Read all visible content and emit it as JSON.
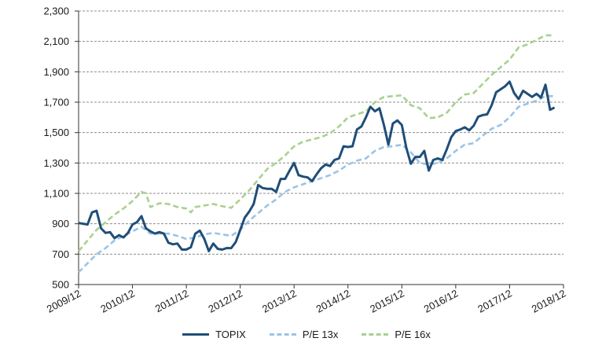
{
  "chart_data": {
    "type": "line",
    "title": "",
    "xlabel": "",
    "ylabel": "",
    "ylim": [
      500,
      2300
    ],
    "yticks": [
      500,
      700,
      900,
      1100,
      1300,
      1500,
      1700,
      1900,
      2100,
      2300
    ],
    "ytick_labels": [
      "500",
      "700",
      "900",
      "1,100",
      "1,300",
      "1,500",
      "1,700",
      "1,900",
      "2,100",
      "2,300"
    ],
    "x_range": [
      0,
      108
    ],
    "xticks": [
      0,
      12,
      24,
      36,
      48,
      60,
      72,
      84,
      96,
      108
    ],
    "xtick_labels": [
      "2009/12",
      "2010/12",
      "2011/12",
      "2012/12",
      "2013/12",
      "2014/12",
      "2015/12",
      "2016/12",
      "2017/12",
      "2018/12"
    ],
    "grid": "horizontal dashed",
    "legend_position": "bottom",
    "series": [
      {
        "name": "TOPIX",
        "color": "#1f4e79",
        "style": "solid",
        "points": [
          [
            0,
            905
          ],
          [
            2,
            895
          ],
          [
            3,
            975
          ],
          [
            4,
            985
          ],
          [
            5,
            870
          ],
          [
            6,
            840
          ],
          [
            7,
            845
          ],
          [
            8,
            805
          ],
          [
            9,
            825
          ],
          [
            10,
            810
          ],
          [
            11,
            840
          ],
          [
            12,
            895
          ],
          [
            13,
            910
          ],
          [
            14,
            950
          ],
          [
            15,
            870
          ],
          [
            16,
            850
          ],
          [
            17,
            835
          ],
          [
            18,
            845
          ],
          [
            19,
            835
          ],
          [
            20,
            775
          ],
          [
            21,
            765
          ],
          [
            22,
            770
          ],
          [
            23,
            730
          ],
          [
            24,
            730
          ],
          [
            25,
            745
          ],
          [
            26,
            835
          ],
          [
            27,
            855
          ],
          [
            28,
            800
          ],
          [
            29,
            720
          ],
          [
            30,
            770
          ],
          [
            31,
            735
          ],
          [
            32,
            730
          ],
          [
            33,
            740
          ],
          [
            34,
            740
          ],
          [
            35,
            780
          ],
          [
            36,
            860
          ],
          [
            37,
            940
          ],
          [
            38,
            980
          ],
          [
            39,
            1030
          ],
          [
            40,
            1155
          ],
          [
            41,
            1135
          ],
          [
            42,
            1130
          ],
          [
            43,
            1130
          ],
          [
            44,
            1110
          ],
          [
            45,
            1195
          ],
          [
            46,
            1195
          ],
          [
            47,
            1250
          ],
          [
            48,
            1300
          ],
          [
            49,
            1220
          ],
          [
            50,
            1210
          ],
          [
            51,
            1205
          ],
          [
            52,
            1180
          ],
          [
            53,
            1225
          ],
          [
            54,
            1265
          ],
          [
            55,
            1290
          ],
          [
            56,
            1280
          ],
          [
            57,
            1320
          ],
          [
            58,
            1330
          ],
          [
            59,
            1410
          ],
          [
            60,
            1405
          ],
          [
            61,
            1410
          ],
          [
            62,
            1520
          ],
          [
            63,
            1540
          ],
          [
            64,
            1600
          ],
          [
            65,
            1670
          ],
          [
            66,
            1640
          ],
          [
            67,
            1660
          ],
          [
            68,
            1550
          ],
          [
            69,
            1420
          ],
          [
            70,
            1560
          ],
          [
            71,
            1580
          ],
          [
            72,
            1550
          ],
          [
            73,
            1400
          ],
          [
            74,
            1295
          ],
          [
            75,
            1340
          ],
          [
            76,
            1340
          ],
          [
            77,
            1380
          ],
          [
            78,
            1250
          ],
          [
            79,
            1320
          ],
          [
            80,
            1330
          ],
          [
            81,
            1320
          ],
          [
            82,
            1390
          ],
          [
            83,
            1470
          ],
          [
            84,
            1510
          ],
          [
            85,
            1520
          ],
          [
            86,
            1535
          ],
          [
            87,
            1515
          ],
          [
            88,
            1545
          ],
          [
            89,
            1605
          ],
          [
            90,
            1615
          ],
          [
            91,
            1620
          ],
          [
            92,
            1680
          ],
          [
            93,
            1765
          ],
          [
            94,
            1785
          ],
          [
            95,
            1805
          ],
          [
            96,
            1835
          ],
          [
            97,
            1760
          ],
          [
            98,
            1720
          ],
          [
            99,
            1775
          ],
          [
            100,
            1755
          ],
          [
            101,
            1735
          ],
          [
            102,
            1755
          ],
          [
            103,
            1730
          ],
          [
            104,
            1815
          ],
          [
            105,
            1650
          ],
          [
            106,
            1665
          ]
        ]
      },
      {
        "name": "P/E 13x",
        "color": "#9cc3e5",
        "style": "dashed",
        "points": [
          [
            0,
            580
          ],
          [
            2,
            640
          ],
          [
            4,
            700
          ],
          [
            6,
            740
          ],
          [
            8,
            790
          ],
          [
            10,
            820
          ],
          [
            12,
            850
          ],
          [
            14,
            880
          ],
          [
            16,
            835
          ],
          [
            18,
            835
          ],
          [
            20,
            835
          ],
          [
            22,
            820
          ],
          [
            24,
            800
          ],
          [
            26,
            810
          ],
          [
            28,
            830
          ],
          [
            30,
            840
          ],
          [
            32,
            830
          ],
          [
            34,
            820
          ],
          [
            36,
            860
          ],
          [
            38,
            920
          ],
          [
            40,
            970
          ],
          [
            42,
            1020
          ],
          [
            44,
            1060
          ],
          [
            46,
            1110
          ],
          [
            48,
            1140
          ],
          [
            50,
            1160
          ],
          [
            52,
            1180
          ],
          [
            54,
            1200
          ],
          [
            56,
            1220
          ],
          [
            58,
            1250
          ],
          [
            60,
            1290
          ],
          [
            62,
            1315
          ],
          [
            64,
            1330
          ],
          [
            66,
            1380
          ],
          [
            68,
            1405
          ],
          [
            70,
            1410
          ],
          [
            72,
            1420
          ],
          [
            74,
            1370
          ],
          [
            76,
            1300
          ],
          [
            78,
            1290
          ],
          [
            80,
            1300
          ],
          [
            82,
            1330
          ],
          [
            84,
            1380
          ],
          [
            86,
            1420
          ],
          [
            88,
            1430
          ],
          [
            90,
            1480
          ],
          [
            92,
            1525
          ],
          [
            94,
            1550
          ],
          [
            96,
            1600
          ],
          [
            98,
            1670
          ],
          [
            100,
            1690
          ],
          [
            102,
            1710
          ],
          [
            104,
            1740
          ],
          [
            106,
            1740
          ]
        ]
      },
      {
        "name": "P/E 16x",
        "color": "#a9d18e",
        "style": "dashed",
        "points": [
          [
            0,
            720
          ],
          [
            2,
            790
          ],
          [
            4,
            860
          ],
          [
            6,
            910
          ],
          [
            8,
            960
          ],
          [
            10,
            1000
          ],
          [
            12,
            1050
          ],
          [
            14,
            1110
          ],
          [
            15,
            1100
          ],
          [
            16,
            1010
          ],
          [
            18,
            1035
          ],
          [
            20,
            1030
          ],
          [
            22,
            1010
          ],
          [
            24,
            1000
          ],
          [
            25,
            975
          ],
          [
            26,
            1010
          ],
          [
            28,
            1020
          ],
          [
            30,
            1030
          ],
          [
            32,
            1015
          ],
          [
            34,
            1005
          ],
          [
            36,
            1060
          ],
          [
            38,
            1120
          ],
          [
            40,
            1190
          ],
          [
            42,
            1260
          ],
          [
            44,
            1300
          ],
          [
            46,
            1350
          ],
          [
            48,
            1410
          ],
          [
            50,
            1440
          ],
          [
            52,
            1455
          ],
          [
            54,
            1470
          ],
          [
            56,
            1495
          ],
          [
            58,
            1540
          ],
          [
            60,
            1600
          ],
          [
            62,
            1620
          ],
          [
            64,
            1640
          ],
          [
            66,
            1700
          ],
          [
            68,
            1735
          ],
          [
            70,
            1740
          ],
          [
            72,
            1745
          ],
          [
            74,
            1680
          ],
          [
            76,
            1660
          ],
          [
            78,
            1595
          ],
          [
            80,
            1600
          ],
          [
            82,
            1630
          ],
          [
            84,
            1700
          ],
          [
            86,
            1750
          ],
          [
            88,
            1760
          ],
          [
            90,
            1820
          ],
          [
            92,
            1880
          ],
          [
            94,
            1930
          ],
          [
            96,
            1980
          ],
          [
            98,
            2060
          ],
          [
            100,
            2080
          ],
          [
            102,
            2110
          ],
          [
            104,
            2140
          ],
          [
            106,
            2140
          ]
        ]
      }
    ]
  }
}
